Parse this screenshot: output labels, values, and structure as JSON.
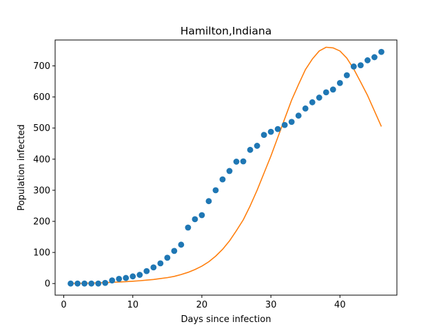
{
  "chart_data": {
    "type": "scatter",
    "title": "Hamilton,Indiana",
    "xlabel": "Days since infection",
    "ylabel": "Population infected",
    "xlim": [
      -1.25,
      48.25
    ],
    "ylim": [
      -37.3,
      783.3
    ],
    "xticks": [
      0,
      10,
      20,
      30,
      40
    ],
    "yticks": [
      0,
      100,
      200,
      300,
      400,
      500,
      600,
      700
    ],
    "grid": false,
    "series": [
      {
        "kind": "scatter",
        "color": "#1f77b4",
        "points": [
          [
            1,
            0
          ],
          [
            2,
            0
          ],
          [
            3,
            0
          ],
          [
            4,
            0
          ],
          [
            5,
            0
          ],
          [
            6,
            2
          ],
          [
            7,
            10
          ],
          [
            8,
            15
          ],
          [
            9,
            18
          ],
          [
            10,
            23
          ],
          [
            11,
            28
          ],
          [
            12,
            40
          ],
          [
            13,
            52
          ],
          [
            14,
            65
          ],
          [
            15,
            83
          ],
          [
            16,
            105
          ],
          [
            17,
            125
          ],
          [
            18,
            180
          ],
          [
            19,
            207
          ],
          [
            20,
            220
          ],
          [
            21,
            265
          ],
          [
            22,
            300
          ],
          [
            23,
            335
          ],
          [
            24,
            362
          ],
          [
            25,
            392
          ],
          [
            26,
            393
          ],
          [
            27,
            430
          ],
          [
            28,
            443
          ],
          [
            29,
            478
          ],
          [
            30,
            488
          ],
          [
            31,
            497
          ],
          [
            32,
            510
          ],
          [
            33,
            520
          ],
          [
            34,
            540
          ],
          [
            35,
            563
          ],
          [
            36,
            583
          ],
          [
            37,
            598
          ],
          [
            38,
            615
          ],
          [
            39,
            624
          ],
          [
            40,
            645
          ],
          [
            41,
            670
          ],
          [
            42,
            698
          ],
          [
            43,
            702
          ],
          [
            44,
            718
          ],
          [
            45,
            728
          ],
          [
            46,
            745
          ]
        ]
      },
      {
        "kind": "line",
        "color": "#ff7f0e",
        "points": [
          [
            1,
            0.5
          ],
          [
            2,
            0.7
          ],
          [
            3,
            1
          ],
          [
            4,
            1.5
          ],
          [
            5,
            2.2
          ],
          [
            6,
            3
          ],
          [
            7,
            4
          ],
          [
            8,
            5
          ],
          [
            9,
            6
          ],
          [
            10,
            7.5
          ],
          [
            11,
            9
          ],
          [
            12,
            11
          ],
          [
            13,
            13
          ],
          [
            14,
            16
          ],
          [
            15,
            19
          ],
          [
            16,
            23
          ],
          [
            17,
            29
          ],
          [
            18,
            36
          ],
          [
            19,
            45
          ],
          [
            20,
            56
          ],
          [
            21,
            70
          ],
          [
            22,
            88
          ],
          [
            23,
            110
          ],
          [
            24,
            137
          ],
          [
            25,
            170
          ],
          [
            26,
            205
          ],
          [
            27,
            250
          ],
          [
            28,
            300
          ],
          [
            29,
            355
          ],
          [
            30,
            410
          ],
          [
            31,
            470
          ],
          [
            32,
            530
          ],
          [
            33,
            590
          ],
          [
            34,
            640
          ],
          [
            35,
            688
          ],
          [
            36,
            722
          ],
          [
            37,
            748
          ],
          [
            38,
            760
          ],
          [
            39,
            758
          ],
          [
            40,
            748
          ],
          [
            41,
            725
          ],
          [
            42,
            690
          ],
          [
            43,
            648
          ],
          [
            44,
            605
          ],
          [
            45,
            555
          ],
          [
            46,
            505
          ]
        ]
      }
    ]
  }
}
